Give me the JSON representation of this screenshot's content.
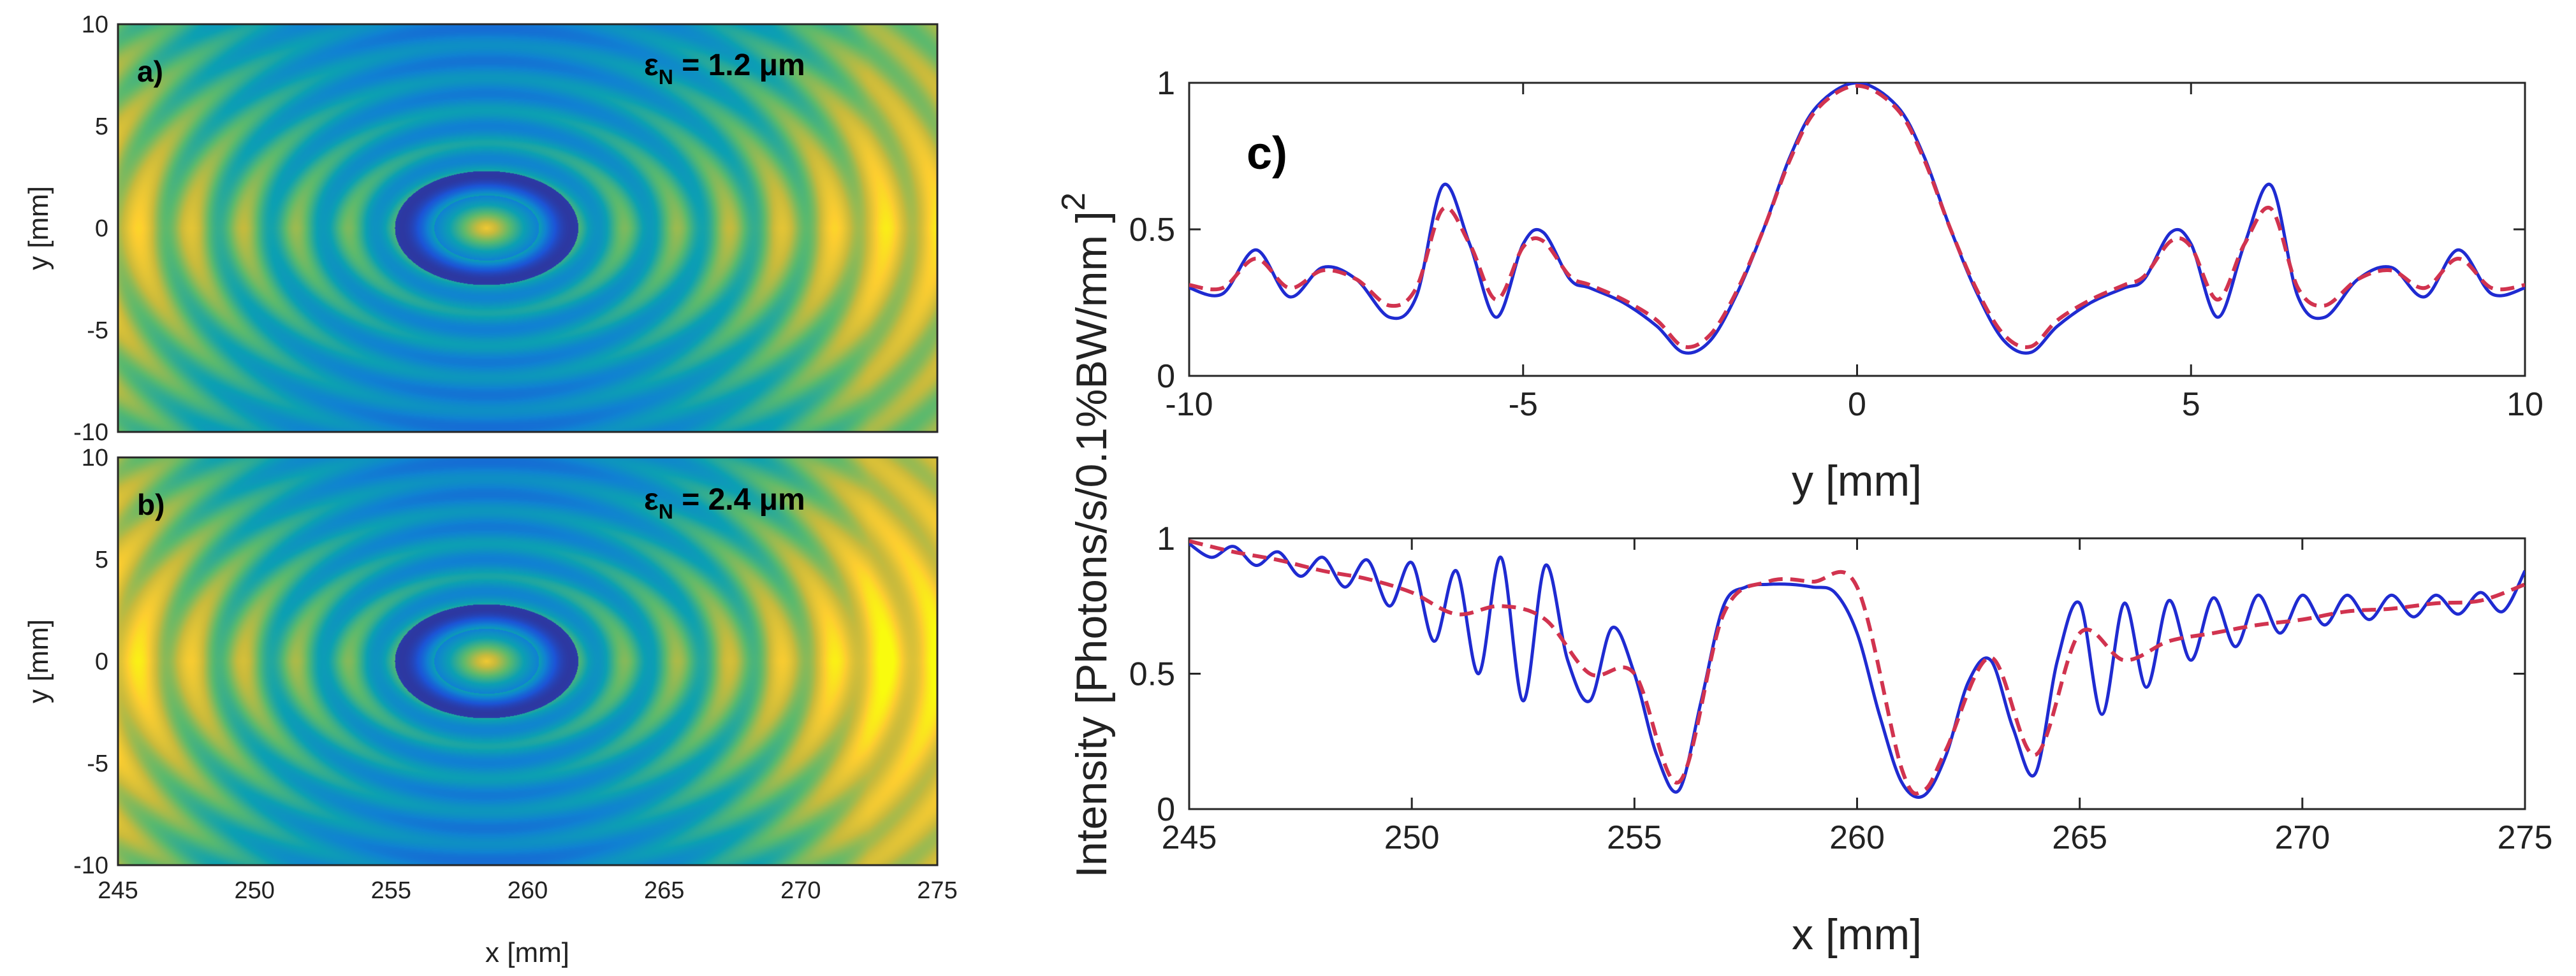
{
  "chart_data": [
    {
      "id": "a",
      "type": "heatmap",
      "panel_label": "a)",
      "annotation_symbol": "ε",
      "annotation_sub": "N",
      "annotation_value": " = 1.2 μm",
      "ylabel": "y [mm]",
      "xlim": [
        245,
        275
      ],
      "ylim": [
        -10,
        10
      ],
      "yticks": [
        "10",
        "5",
        "0",
        "-5",
        "-10"
      ],
      "pattern": {
        "center_x": 258.5,
        "center_y": 0,
        "ring_spacing_mm": 1.6,
        "edge_brightness": 0.9
      }
    },
    {
      "id": "b",
      "type": "heatmap",
      "panel_label": "b)",
      "annotation_symbol": "ε",
      "annotation_sub": "N",
      "annotation_value": " = 2.4 μm",
      "xlabel": "x [mm]",
      "ylabel": "y [mm]",
      "xlim": [
        245,
        275
      ],
      "ylim": [
        -10,
        10
      ],
      "xticks": [
        "245",
        "250",
        "255",
        "260",
        "265",
        "270",
        "275"
      ],
      "yticks": [
        "10",
        "5",
        "0",
        "-5",
        "-10"
      ],
      "pattern": {
        "center_x": 258.5,
        "center_y": 0,
        "ring_spacing_mm": 1.6,
        "edge_brightness": 1.0
      }
    },
    {
      "id": "c_top",
      "type": "line",
      "panel_label": "c)",
      "xlabel": "y [mm]",
      "xlim": [
        -10,
        10
      ],
      "ylim": [
        0,
        1
      ],
      "xticks": [
        "-10",
        "-5",
        "0",
        "5",
        "10"
      ],
      "yticks": [
        "0",
        "0.5",
        "1"
      ],
      "series": [
        {
          "name": "solid",
          "color": "#1f2bd1",
          "dashed": false,
          "x": [
            -10,
            -9.5,
            -9,
            -8.5,
            -8,
            -7.5,
            -7,
            -6.6,
            -6.2,
            -5.8,
            -5.4,
            -5,
            -4.7,
            -4.3,
            -4,
            -3.5,
            -3,
            -2.6,
            -2.2,
            -1.8,
            -1.4,
            -1,
            -0.6,
            0,
            0.6,
            1,
            1.4,
            1.8,
            2.2,
            2.6,
            3,
            3.5,
            4,
            4.3,
            4.7,
            5,
            5.4,
            5.8,
            6.2,
            6.6,
            7,
            7.5,
            8,
            8.5,
            9,
            9.5,
            10
          ],
          "y": [
            0.3,
            0.28,
            0.43,
            0.27,
            0.37,
            0.33,
            0.2,
            0.27,
            0.65,
            0.45,
            0.2,
            0.45,
            0.49,
            0.33,
            0.3,
            0.25,
            0.17,
            0.08,
            0.12,
            0.28,
            0.5,
            0.75,
            0.92,
            1.0,
            0.92,
            0.75,
            0.5,
            0.28,
            0.12,
            0.08,
            0.17,
            0.25,
            0.3,
            0.33,
            0.49,
            0.45,
            0.2,
            0.45,
            0.65,
            0.27,
            0.2,
            0.33,
            0.37,
            0.27,
            0.43,
            0.28,
            0.3
          ]
        },
        {
          "name": "dashed",
          "color": "#d1334f",
          "dashed": true,
          "x": [
            -10,
            -9.5,
            -9,
            -8.5,
            -8,
            -7.5,
            -7,
            -6.6,
            -6.2,
            -5.8,
            -5.4,
            -5,
            -4.7,
            -4.3,
            -4,
            -3.5,
            -3,
            -2.6,
            -2.2,
            -1.8,
            -1.4,
            -1,
            -0.6,
            0,
            0.6,
            1,
            1.4,
            1.8,
            2.2,
            2.6,
            3,
            3.5,
            4,
            4.3,
            4.7,
            5,
            5.4,
            5.8,
            6.2,
            6.6,
            7,
            7.5,
            8,
            8.5,
            9,
            9.5,
            10
          ],
          "y": [
            0.31,
            0.3,
            0.4,
            0.3,
            0.36,
            0.33,
            0.24,
            0.3,
            0.57,
            0.45,
            0.26,
            0.44,
            0.46,
            0.34,
            0.31,
            0.26,
            0.19,
            0.1,
            0.14,
            0.29,
            0.5,
            0.74,
            0.91,
            0.99,
            0.91,
            0.74,
            0.5,
            0.29,
            0.14,
            0.1,
            0.19,
            0.26,
            0.31,
            0.34,
            0.46,
            0.44,
            0.26,
            0.45,
            0.57,
            0.3,
            0.24,
            0.33,
            0.36,
            0.3,
            0.4,
            0.3,
            0.31
          ]
        }
      ]
    },
    {
      "id": "c_bottom",
      "type": "line",
      "xlabel": "x [mm]",
      "ylabel": "Intensity [Photons/s/0.1%BW/mm  ]",
      "ylabel_sup": "2",
      "xlim": [
        245,
        275
      ],
      "ylim": [
        0,
        1
      ],
      "xticks": [
        "245",
        "250",
        "255",
        "260",
        "265",
        "270",
        "275"
      ],
      "yticks": [
        "0",
        "0.5",
        "1"
      ],
      "series": [
        {
          "name": "solid",
          "color": "#1f2bd1",
          "dashed": false,
          "x": [
            245,
            245.5,
            246,
            246.5,
            247,
            247.5,
            248,
            248.5,
            249,
            249.5,
            250,
            250.5,
            251,
            251.5,
            252,
            252.5,
            253,
            253.5,
            254,
            254.5,
            255,
            255.5,
            256,
            256.5,
            257,
            257.5,
            258,
            258.5,
            259,
            259.5,
            260,
            260.5,
            261,
            261.5,
            262,
            262.5,
            263,
            263.5,
            264,
            264.5,
            265,
            265.5,
            266,
            266.5,
            267,
            267.5,
            268,
            268.5,
            269,
            269.5,
            270,
            270.5,
            271,
            271.5,
            272,
            272.5,
            273,
            273.5,
            274,
            274.5,
            275
          ],
          "y": [
            0.98,
            0.93,
            0.97,
            0.9,
            0.95,
            0.86,
            0.93,
            0.82,
            0.92,
            0.75,
            0.91,
            0.62,
            0.88,
            0.5,
            0.93,
            0.4,
            0.9,
            0.55,
            0.4,
            0.67,
            0.5,
            0.2,
            0.07,
            0.4,
            0.75,
            0.82,
            0.83,
            0.83,
            0.82,
            0.8,
            0.65,
            0.35,
            0.1,
            0.05,
            0.2,
            0.47,
            0.55,
            0.3,
            0.13,
            0.55,
            0.76,
            0.35,
            0.76,
            0.45,
            0.77,
            0.55,
            0.78,
            0.6,
            0.79,
            0.65,
            0.79,
            0.68,
            0.79,
            0.7,
            0.79,
            0.71,
            0.79,
            0.72,
            0.8,
            0.73,
            0.88
          ]
        },
        {
          "name": "dashed",
          "color": "#d1334f",
          "dashed": true,
          "x": [
            245,
            246,
            247,
            248,
            249,
            250,
            251,
            252,
            253,
            254,
            255,
            256,
            257,
            258,
            259,
            260,
            261,
            261.5,
            262,
            263,
            264,
            265,
            266,
            267,
            268,
            269,
            270,
            271,
            272,
            273,
            274,
            275
          ],
          "y": [
            0.99,
            0.95,
            0.92,
            0.88,
            0.85,
            0.8,
            0.72,
            0.75,
            0.7,
            0.5,
            0.5,
            0.1,
            0.72,
            0.84,
            0.84,
            0.82,
            0.15,
            0.07,
            0.22,
            0.56,
            0.2,
            0.65,
            0.55,
            0.62,
            0.65,
            0.68,
            0.7,
            0.73,
            0.74,
            0.76,
            0.77,
            0.83
          ]
        }
      ]
    }
  ]
}
